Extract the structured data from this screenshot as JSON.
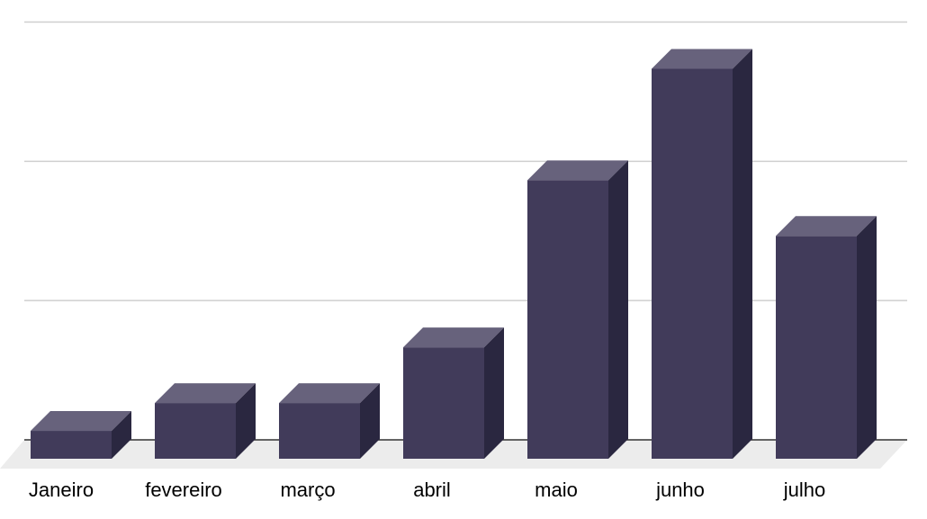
{
  "chart_data": {
    "type": "bar",
    "style": "3d-column",
    "categories": [
      "Janeiro",
      "fevereiro",
      "março",
      "abril",
      "maio",
      "junho",
      "julho"
    ],
    "series": [
      {
        "values": [
          1,
          2,
          2,
          4,
          10,
          14,
          8
        ]
      }
    ],
    "ylim": [
      0,
      15
    ],
    "y_gridlines": [
      0,
      5,
      10,
      15
    ],
    "grid": true,
    "y_tick_labels_shown": false,
    "legend": "none",
    "title": "",
    "xlabel": "",
    "ylabel": ""
  },
  "colors": {
    "bar_front": "#413b5a",
    "bar_top": "#67627c",
    "bar_side": "#2a2740",
    "floor": "#ececec",
    "gridline": "#cfcfcf",
    "baseline": "#333333"
  }
}
